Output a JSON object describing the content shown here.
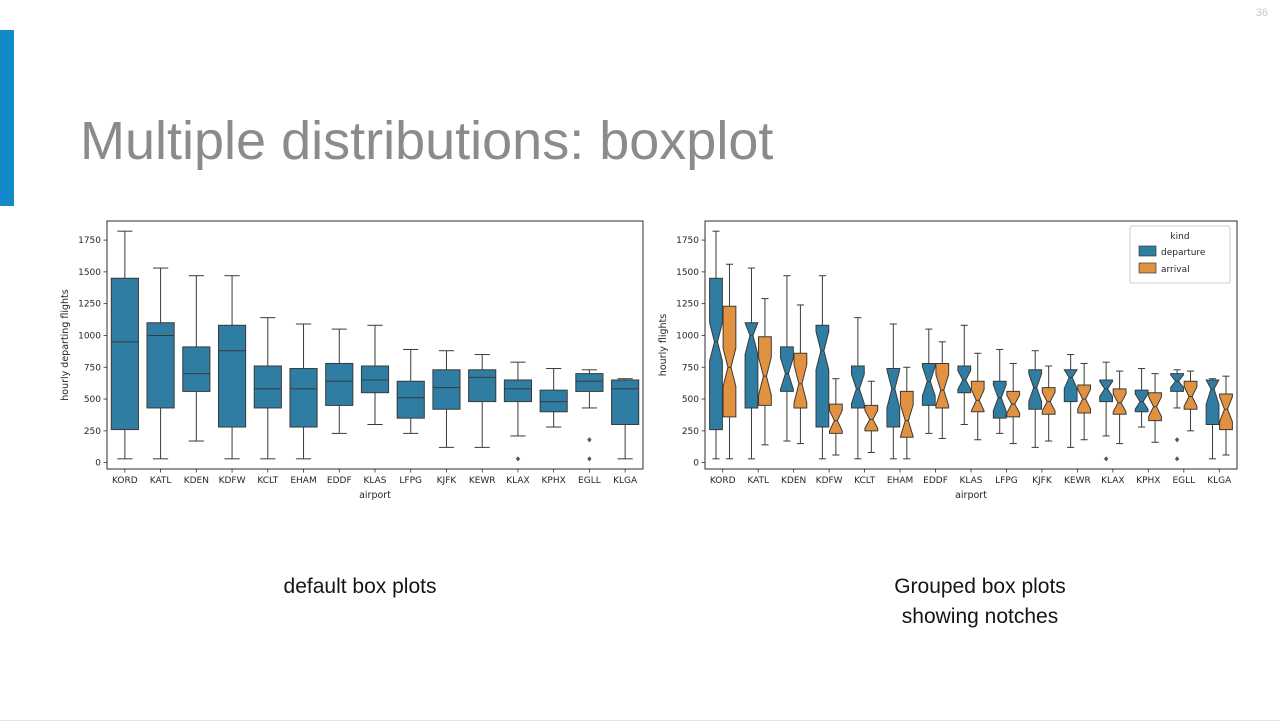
{
  "slide": {
    "page_number": "36",
    "title": "Multiple distributions: boxplot",
    "accent_color": "#1289c9",
    "captions": {
      "left": "default box plots",
      "right_line1": "Grouped box plots",
      "right_line2": "showing notches"
    }
  },
  "colors": {
    "departure": "#2f7da2",
    "arrival": "#e1913f",
    "box_edge": "#3a3a3a",
    "axis": "#2e2e2e"
  },
  "chart_data": [
    {
      "type": "box",
      "notched": false,
      "title": "",
      "xlabel": "airport",
      "ylabel": "hourly departing flights",
      "ylim": [
        -50,
        1900
      ],
      "yticks": [
        0,
        250,
        500,
        750,
        1000,
        1250,
        1500,
        1750
      ],
      "categories": [
        "KORD",
        "KATL",
        "KDEN",
        "KDFW",
        "KCLT",
        "EHAM",
        "EDDF",
        "KLAS",
        "LFPG",
        "KJFK",
        "KEWR",
        "KLAX",
        "KPHX",
        "EGLL",
        "KLGA"
      ],
      "series": [
        {
          "name": "departure",
          "color": "#2f7da2",
          "boxes": [
            {
              "whislo": 30,
              "q1": 260,
              "med": 950,
              "q3": 1450,
              "whishi": 1820,
              "fliers": []
            },
            {
              "whislo": 30,
              "q1": 430,
              "med": 1000,
              "q3": 1100,
              "whishi": 1530,
              "fliers": []
            },
            {
              "whislo": 170,
              "q1": 560,
              "med": 700,
              "q3": 910,
              "whishi": 1470,
              "fliers": []
            },
            {
              "whislo": 30,
              "q1": 280,
              "med": 880,
              "q3": 1080,
              "whishi": 1470,
              "fliers": []
            },
            {
              "whislo": 30,
              "q1": 430,
              "med": 580,
              "q3": 760,
              "whishi": 1140,
              "fliers": []
            },
            {
              "whislo": 30,
              "q1": 280,
              "med": 580,
              "q3": 740,
              "whishi": 1090,
              "fliers": []
            },
            {
              "whislo": 230,
              "q1": 450,
              "med": 640,
              "q3": 780,
              "whishi": 1050,
              "fliers": []
            },
            {
              "whislo": 300,
              "q1": 550,
              "med": 650,
              "q3": 760,
              "whishi": 1080,
              "fliers": []
            },
            {
              "whislo": 230,
              "q1": 350,
              "med": 510,
              "q3": 640,
              "whishi": 890,
              "fliers": []
            },
            {
              "whislo": 120,
              "q1": 420,
              "med": 590,
              "q3": 730,
              "whishi": 880,
              "fliers": []
            },
            {
              "whislo": 120,
              "q1": 480,
              "med": 670,
              "q3": 730,
              "whishi": 850,
              "fliers": []
            },
            {
              "whislo": 210,
              "q1": 480,
              "med": 580,
              "q3": 650,
              "whishi": 790,
              "fliers": [
                30
              ]
            },
            {
              "whislo": 280,
              "q1": 400,
              "med": 480,
              "q3": 570,
              "whishi": 740,
              "fliers": []
            },
            {
              "whislo": 430,
              "q1": 560,
              "med": 640,
              "q3": 700,
              "whishi": 730,
              "fliers": [
                180,
                30
              ]
            },
            {
              "whislo": 30,
              "q1": 300,
              "med": 580,
              "q3": 650,
              "whishi": 660,
              "fliers": []
            }
          ]
        }
      ]
    },
    {
      "type": "box",
      "notched": true,
      "title": "",
      "xlabel": "airport",
      "ylabel": "hourly flights",
      "ylim": [
        -50,
        1900
      ],
      "yticks": [
        0,
        250,
        500,
        750,
        1000,
        1250,
        1500,
        1750
      ],
      "categories": [
        "KORD",
        "KATL",
        "KDEN",
        "KDFW",
        "KCLT",
        "EHAM",
        "EDDF",
        "KLAS",
        "LFPG",
        "KJFK",
        "KEWR",
        "KLAX",
        "KPHX",
        "EGLL",
        "KLGA"
      ],
      "legend": {
        "title": "kind",
        "entries": [
          {
            "label": "departure",
            "color": "#2f7da2"
          },
          {
            "label": "arrival",
            "color": "#e1913f"
          }
        ]
      },
      "series": [
        {
          "name": "departure",
          "color": "#2f7da2",
          "boxes": [
            {
              "whislo": 30,
              "q1": 260,
              "med": 950,
              "q3": 1450,
              "whishi": 1820,
              "fliers": []
            },
            {
              "whislo": 30,
              "q1": 430,
              "med": 1000,
              "q3": 1100,
              "whishi": 1530,
              "fliers": []
            },
            {
              "whislo": 170,
              "q1": 560,
              "med": 700,
              "q3": 910,
              "whishi": 1470,
              "fliers": []
            },
            {
              "whislo": 30,
              "q1": 280,
              "med": 880,
              "q3": 1080,
              "whishi": 1470,
              "fliers": []
            },
            {
              "whislo": 30,
              "q1": 430,
              "med": 580,
              "q3": 760,
              "whishi": 1140,
              "fliers": []
            },
            {
              "whislo": 30,
              "q1": 280,
              "med": 580,
              "q3": 740,
              "whishi": 1090,
              "fliers": []
            },
            {
              "whislo": 230,
              "q1": 450,
              "med": 640,
              "q3": 780,
              "whishi": 1050,
              "fliers": []
            },
            {
              "whislo": 300,
              "q1": 550,
              "med": 650,
              "q3": 760,
              "whishi": 1080,
              "fliers": []
            },
            {
              "whislo": 230,
              "q1": 350,
              "med": 510,
              "q3": 640,
              "whishi": 890,
              "fliers": []
            },
            {
              "whislo": 120,
              "q1": 420,
              "med": 590,
              "q3": 730,
              "whishi": 880,
              "fliers": []
            },
            {
              "whislo": 120,
              "q1": 480,
              "med": 670,
              "q3": 730,
              "whishi": 850,
              "fliers": []
            },
            {
              "whislo": 210,
              "q1": 480,
              "med": 580,
              "q3": 650,
              "whishi": 790,
              "fliers": [
                30
              ]
            },
            {
              "whislo": 280,
              "q1": 400,
              "med": 480,
              "q3": 570,
              "whishi": 740,
              "fliers": []
            },
            {
              "whislo": 430,
              "q1": 560,
              "med": 640,
              "q3": 700,
              "whishi": 730,
              "fliers": [
                180,
                30
              ]
            },
            {
              "whislo": 30,
              "q1": 300,
              "med": 580,
              "q3": 650,
              "whishi": 660,
              "fliers": []
            }
          ]
        },
        {
          "name": "arrival",
          "color": "#e1913f",
          "boxes": [
            {
              "whislo": 30,
              "q1": 360,
              "med": 750,
              "q3": 1230,
              "whishi": 1560,
              "fliers": []
            },
            {
              "whislo": 140,
              "q1": 450,
              "med": 680,
              "q3": 990,
              "whishi": 1290,
              "fliers": []
            },
            {
              "whislo": 150,
              "q1": 430,
              "med": 620,
              "q3": 860,
              "whishi": 1240,
              "fliers": []
            },
            {
              "whislo": 60,
              "q1": 230,
              "med": 330,
              "q3": 460,
              "whishi": 660,
              "fliers": []
            },
            {
              "whislo": 80,
              "q1": 250,
              "med": 340,
              "q3": 450,
              "whishi": 640,
              "fliers": []
            },
            {
              "whislo": 30,
              "q1": 200,
              "med": 330,
              "q3": 560,
              "whishi": 750,
              "fliers": []
            },
            {
              "whislo": 190,
              "q1": 430,
              "med": 570,
              "q3": 780,
              "whishi": 950,
              "fliers": []
            },
            {
              "whislo": 180,
              "q1": 400,
              "med": 490,
              "q3": 640,
              "whishi": 860,
              "fliers": []
            },
            {
              "whislo": 150,
              "q1": 360,
              "med": 460,
              "q3": 560,
              "whishi": 780,
              "fliers": []
            },
            {
              "whislo": 170,
              "q1": 380,
              "med": 480,
              "q3": 590,
              "whishi": 760,
              "fliers": []
            },
            {
              "whislo": 180,
              "q1": 390,
              "med": 500,
              "q3": 610,
              "whishi": 780,
              "fliers": []
            },
            {
              "whislo": 150,
              "q1": 380,
              "med": 470,
              "q3": 580,
              "whishi": 720,
              "fliers": []
            },
            {
              "whislo": 160,
              "q1": 330,
              "med": 440,
              "q3": 550,
              "whishi": 700,
              "fliers": []
            },
            {
              "whislo": 250,
              "q1": 420,
              "med": 520,
              "q3": 640,
              "whishi": 720,
              "fliers": []
            },
            {
              "whislo": 60,
              "q1": 260,
              "med": 420,
              "q3": 540,
              "whishi": 680,
              "fliers": []
            }
          ]
        }
      ]
    }
  ]
}
